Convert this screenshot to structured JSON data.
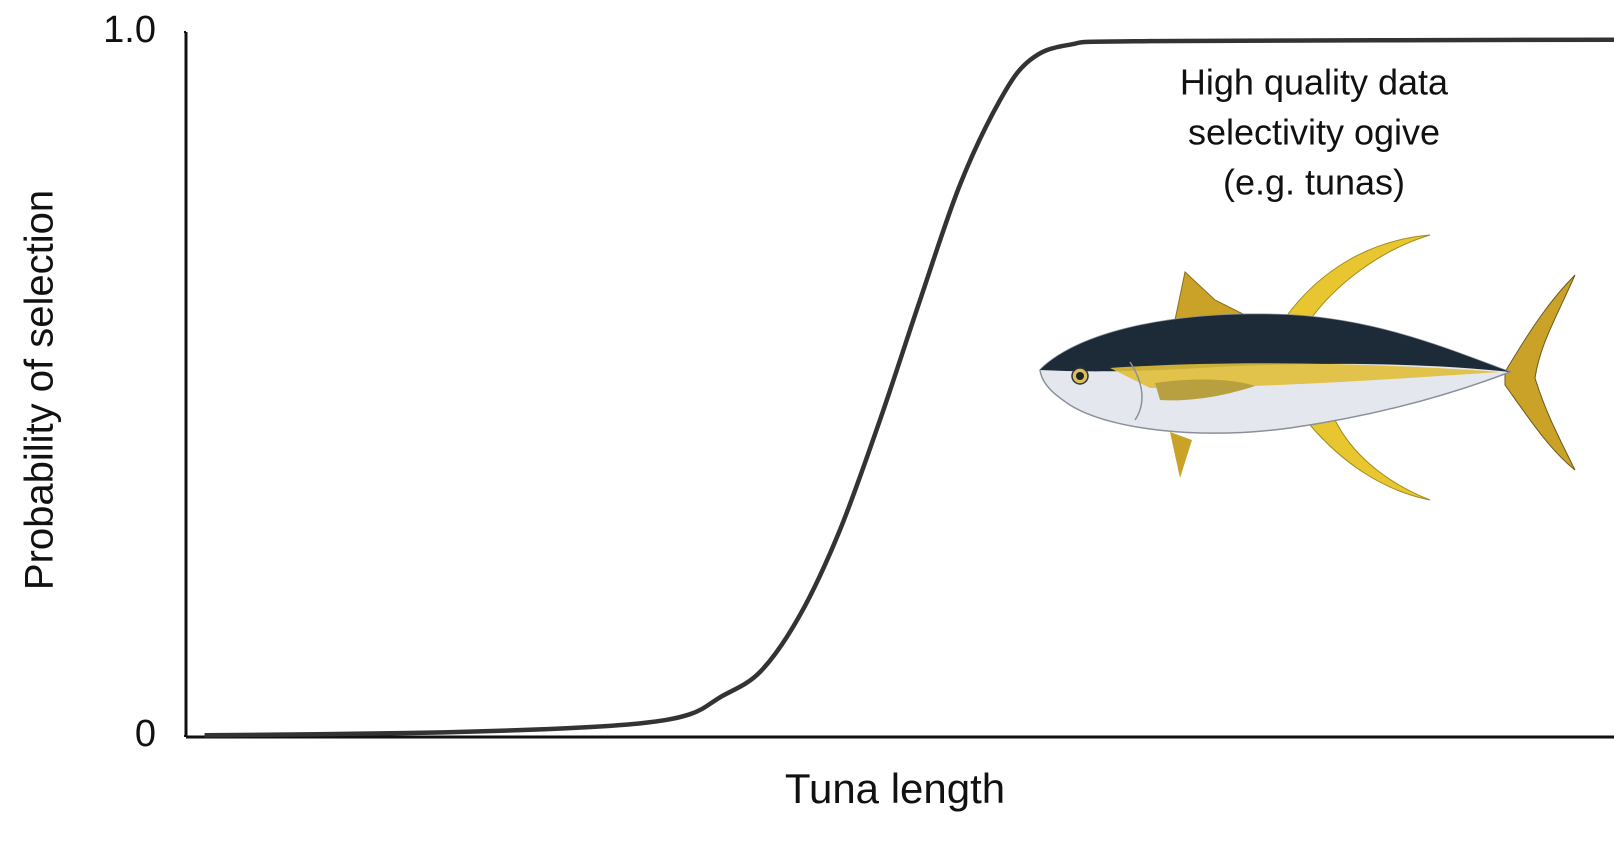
{
  "chart_data": {
    "type": "line",
    "xlabel": "Tuna length",
    "ylabel": "Probability of selection",
    "annotation": [
      "High quality data",
      "selectivity ogive",
      "(e.g. tunas)"
    ],
    "x": [
      1.3,
      15,
      25.5,
      31.8,
      35.3,
      37.4,
      40.2,
      43,
      45.8,
      48.6,
      51.4,
      54.2,
      57,
      59.1,
      61.9,
      67.5,
      100
    ],
    "values": [
      0.001,
      0.004,
      0.01,
      0.018,
      0.031,
      0.055,
      0.091,
      0.172,
      0.293,
      0.449,
      0.619,
      0.783,
      0.903,
      0.96,
      0.982,
      0.987,
      0.989
    ],
    "color": "#333333",
    "xlim": [
      0,
      100
    ],
    "ylim": [
      0,
      1
    ],
    "yticks": [
      0,
      {
        "value": 1,
        "label": "1.0"
      }
    ]
  }
}
